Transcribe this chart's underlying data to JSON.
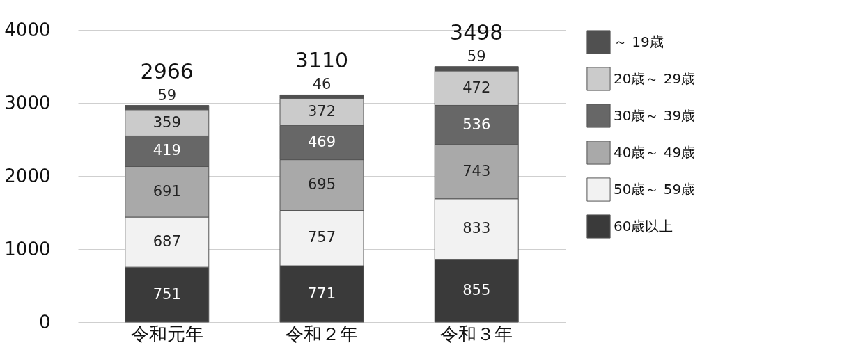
{
  "chart_data": {
    "type": "bar",
    "stacked": true,
    "categories": [
      "令和元年",
      "令和２年",
      "令和３年"
    ],
    "series": [
      {
        "name": "60歳以上",
        "color": "#3a3a3a",
        "values": [
          751,
          771,
          855
        ]
      },
      {
        "name": "50歳～ 59歳",
        "color": "#f2f2f2",
        "values": [
          687,
          757,
          833
        ]
      },
      {
        "name": "40歳～ 49歳",
        "color": "#a9a9a9",
        "values": [
          691,
          695,
          743
        ]
      },
      {
        "name": "30歳～ 39歳",
        "color": "#676767",
        "values": [
          419,
          469,
          536
        ]
      },
      {
        "name": "20歳～ 29歳",
        "color": "#cbcbcb",
        "values": [
          359,
          372,
          472
        ]
      },
      {
        "name": "～ 19歳",
        "color": "#505050",
        "values": [
          59,
          46,
          59
        ]
      }
    ],
    "ylim": [
      0,
      4000
    ],
    "yticks": [
      0,
      1000,
      2000,
      3000,
      4000
    ],
    "grid": "y",
    "legend": "top right",
    "data_labels": true,
    "totals": [
      "2966",
      "3110",
      "3498"
    ]
  }
}
